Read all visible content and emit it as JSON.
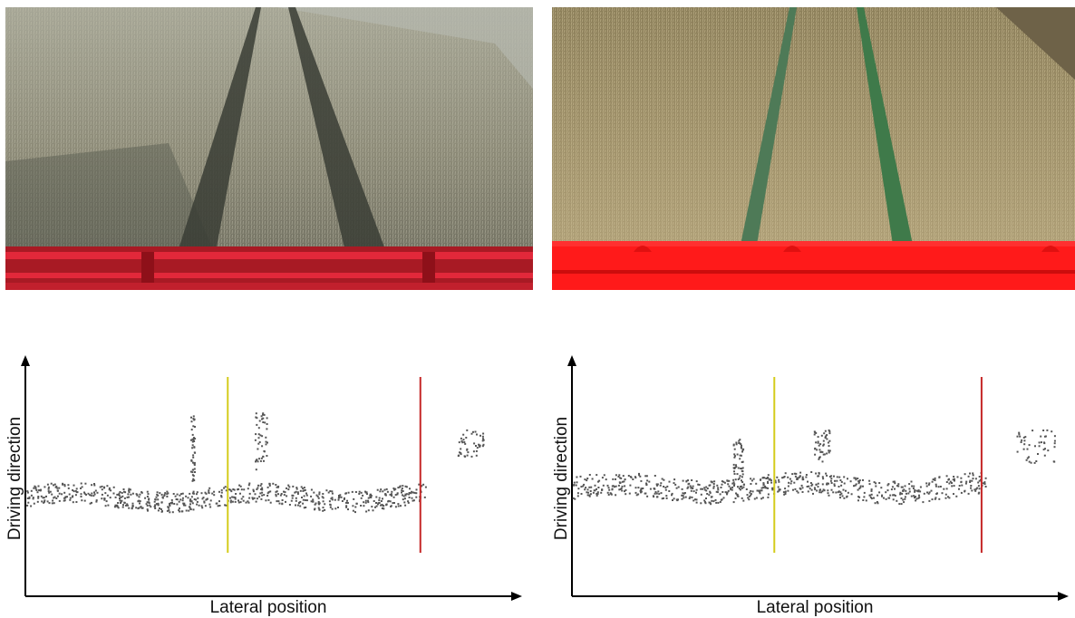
{
  "photos": [
    {
      "name": "real-wheat-field-photo"
    },
    {
      "name": "simulated-wheat-field-render"
    }
  ],
  "chart_data": [
    {
      "type": "scatter",
      "xlabel": "Lateral position",
      "ylabel": "Driving direction",
      "xlim": [
        0,
        100
      ],
      "ylim": [
        0,
        100
      ],
      "grid": false,
      "markers": [
        {
          "x": 41.5,
          "color": "#d4cc1c"
        },
        {
          "x": 81.0,
          "color": "#c62828"
        }
      ],
      "point_color": "#555555",
      "band": {
        "x_range": [
          0,
          82
        ],
        "y_center": 43,
        "y_spread": 9
      },
      "clusters": [
        {
          "x_range": [
            33.8,
            34.6
          ],
          "y_range": [
            50,
            78
          ]
        },
        {
          "x_range": [
            47.0,
            49.5
          ],
          "y_range": [
            55,
            80
          ]
        },
        {
          "x_range": [
            88.5,
            94.0
          ],
          "y_range": [
            60,
            72
          ]
        }
      ]
    },
    {
      "type": "scatter",
      "xlabel": "Lateral position",
      "ylabel": "Driving direction",
      "xlim": [
        0,
        100
      ],
      "ylim": [
        0,
        100
      ],
      "grid": false,
      "markers": [
        {
          "x": 41.5,
          "color": "#d4cc1c"
        },
        {
          "x": 84.0,
          "color": "#c62828"
        }
      ],
      "point_color": "#555555",
      "band": {
        "x_range": [
          0,
          85
        ],
        "y_center": 47,
        "y_spread": 10
      },
      "clusters": [
        {
          "x_range": [
            33.0,
            35.0
          ],
          "y_range": [
            50,
            68
          ]
        },
        {
          "x_range": [
            49.5,
            53.0
          ],
          "y_range": [
            58,
            72
          ]
        },
        {
          "x_range": [
            91.0,
            99.0
          ],
          "y_range": [
            57,
            72
          ]
        }
      ]
    }
  ]
}
